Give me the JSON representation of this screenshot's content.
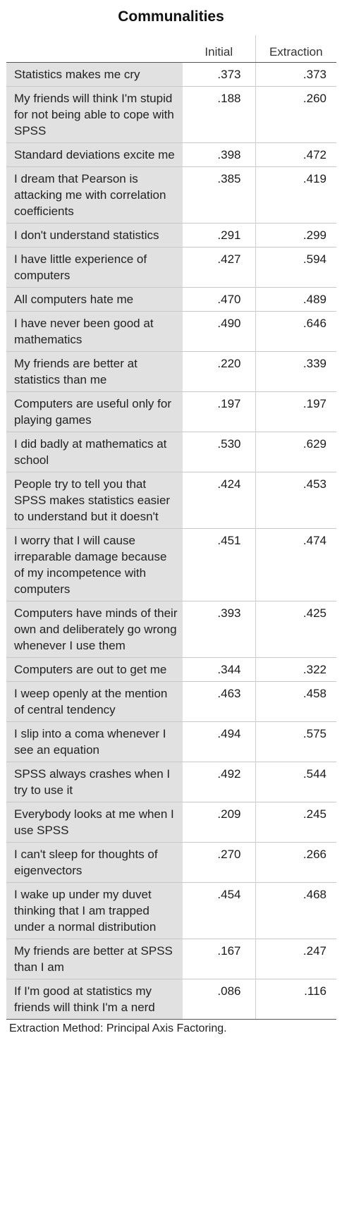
{
  "title": "Communalities",
  "columns": {
    "initial": "Initial",
    "extraction": "Extraction"
  },
  "rows": [
    {
      "label": "Statistics makes me cry",
      "initial": ".373",
      "extraction": ".373"
    },
    {
      "label": "My friends will think I'm stupid for not being able to cope with SPSS",
      "initial": ".188",
      "extraction": ".260"
    },
    {
      "label": "Standard deviations excite me",
      "initial": ".398",
      "extraction": ".472"
    },
    {
      "label": "I dream that Pearson is attacking me with correlation coefficients",
      "initial": ".385",
      "extraction": ".419"
    },
    {
      "label": "I don't understand statistics",
      "initial": ".291",
      "extraction": ".299"
    },
    {
      "label": "I have little experience of computers",
      "initial": ".427",
      "extraction": ".594"
    },
    {
      "label": "All computers hate me",
      "initial": ".470",
      "extraction": ".489"
    },
    {
      "label": "I have never been good at mathematics",
      "initial": ".490",
      "extraction": ".646"
    },
    {
      "label": "My friends are better at statistics than me",
      "initial": ".220",
      "extraction": ".339"
    },
    {
      "label": "Computers are useful only for playing games",
      "initial": ".197",
      "extraction": ".197"
    },
    {
      "label": "I did badly at mathematics at school",
      "initial": ".530",
      "extraction": ".629"
    },
    {
      "label": "People try to tell you that SPSS makes statistics easier to understand but it doesn't",
      "initial": ".424",
      "extraction": ".453"
    },
    {
      "label": "I worry that I will cause irreparable damage because of my incompetence with computers",
      "initial": ".451",
      "extraction": ".474"
    },
    {
      "label": "Computers have minds of their own and deliberately go wrong whenever I use them",
      "initial": ".393",
      "extraction": ".425"
    },
    {
      "label": "Computers are out to get me",
      "initial": ".344",
      "extraction": ".322"
    },
    {
      "label": "I weep openly at the mention of central tendency",
      "initial": ".463",
      "extraction": ".458"
    },
    {
      "label": "I slip into a coma whenever I see an equation",
      "initial": ".494",
      "extraction": ".575"
    },
    {
      "label": "SPSS always crashes when I try to use it",
      "initial": ".492",
      "extraction": ".544"
    },
    {
      "label": "Everybody looks at me when I use SPSS",
      "initial": ".209",
      "extraction": ".245"
    },
    {
      "label": "I can't sleep for thoughts of eigenvectors",
      "initial": ".270",
      "extraction": ".266"
    },
    {
      "label": "I wake up under my duvet thinking that I am trapped under a normal distribution",
      "initial": ".454",
      "extraction": ".468"
    },
    {
      "label": "My friends are better at SPSS than I am",
      "initial": ".167",
      "extraction": ".247"
    },
    {
      "label": "If I'm good at statistics my friends will think I'm a nerd",
      "initial": ".086",
      "extraction": ".116"
    }
  ],
  "footnote": "Extraction Method: Principal Axis Factoring."
}
